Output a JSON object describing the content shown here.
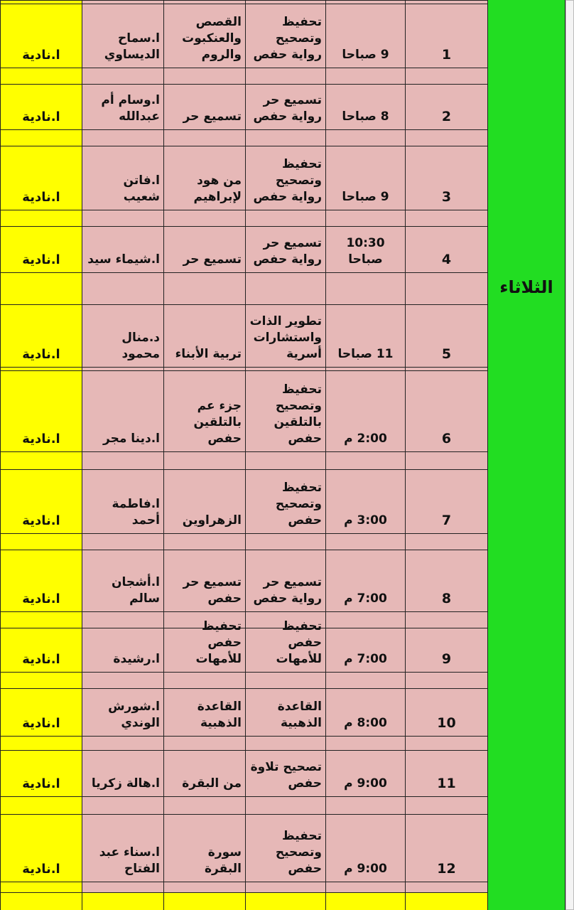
{
  "day": "الثلاثاء",
  "rows": [
    {
      "number": "1",
      "time": "9 صباحا",
      "type": "تحفيظ\nوتصحيح\nرواية حفص",
      "content": "القصص\nوالعنكبوت\nوالروم",
      "teacher": "ا.سماح\nالديساوي",
      "supervisor": "ا.نادية"
    },
    {
      "number": "2",
      "time": "8 صباحا",
      "type": "تسميع حر\nرواية حفص",
      "content": "تسميع حر",
      "teacher": "ا.وسام أم\nعبدالله",
      "supervisor": "ا.نادية"
    },
    {
      "number": "3",
      "time": "9 صباحا",
      "type": "تحفيظ\nوتصحيح\nرواية حفص",
      "content": "من هود\nلإبراهيم",
      "teacher": "ا.فاتن شعيب",
      "supervisor": "ا.نادية"
    },
    {
      "number": "4",
      "time": "10:30\nصباحا",
      "type": "تسميع حر\nرواية حفص",
      "content": "تسميع حر",
      "teacher": "ا.شيماء سيد",
      "supervisor": "ا.نادية"
    },
    {
      "number": "5",
      "time": "11 صباحا",
      "type": "تطوير الذات\nواستشارات\nأسرية",
      "content": "تربية الأبناء",
      "teacher": "د.منال\nمحمود",
      "supervisor": "ا.نادية"
    },
    {
      "number": "6",
      "time": "2:00 م",
      "type": "تحفيظ\nوتصحيح\nبالتلقين\nحفص",
      "content": "جزء عم\nبالتلقين\nحفص",
      "teacher": "ا.دينا مجر",
      "supervisor": "ا.نادية"
    },
    {
      "number": "7",
      "time": "3:00 م",
      "type": "تحفيظ\nوتصحيح\nحفص",
      "content": "الزهراوين",
      "teacher": "ا.فاطمة أحمد",
      "supervisor": "ا.نادية"
    },
    {
      "number": "8",
      "time": "7:00 م",
      "type": "تسميع حر\nرواية حفص",
      "content": "تسميع حر\nحفص",
      "teacher": "ا.أشجان سالم",
      "supervisor": "ا.نادية"
    },
    {
      "number": "9",
      "time": "7:00 م",
      "type": "تحفيظ حفص\nللأمهات",
      "content": "تحفيظ حفص\nللأمهات",
      "teacher": "ا.رشيدة",
      "supervisor": "ا.نادية"
    },
    {
      "number": "10",
      "time": "8:00 م",
      "type": "القاعدة\nالذهبية",
      "content": "القاعدة\nالذهبية",
      "teacher": "ا.شورش\nالوندي",
      "supervisor": "ا.نادية"
    },
    {
      "number": "11",
      "time": "9:00 م",
      "type": "تصحيح تلاوة\nحفص",
      "content": "من البقرة",
      "teacher": "ا.هالة زكريا",
      "supervisor": "ا.نادية"
    },
    {
      "number": "12",
      "time": "9:00 م",
      "type": "تحفيظ\nوتصحيح\nحفص",
      "content": "سورة البقرة",
      "teacher": "ا.سناء عبد\nالفتاح",
      "supervisor": "ا.نادية"
    }
  ]
}
